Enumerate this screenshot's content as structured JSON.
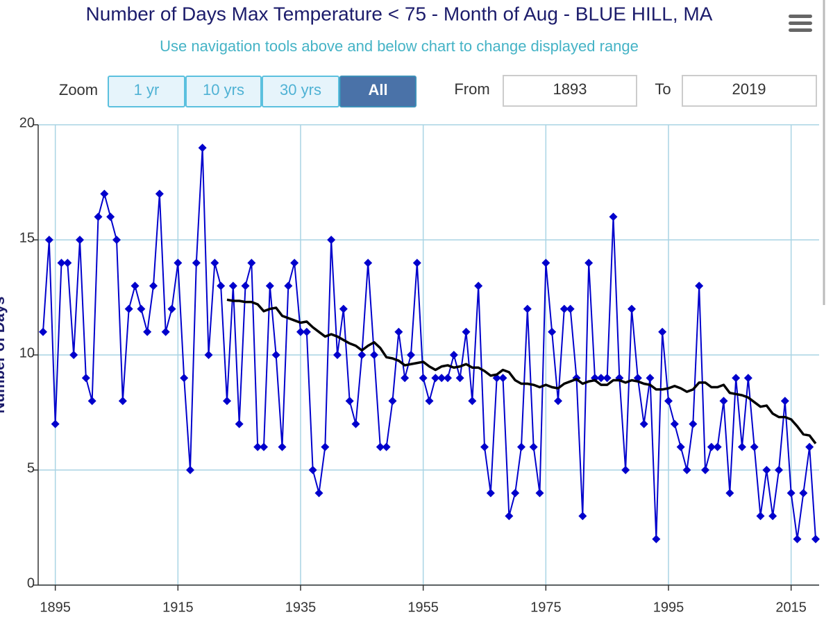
{
  "chart_data": {
    "type": "line",
    "title": "Number of Days Max Temperature < 75 - Month of Aug - BLUE HILL, MA",
    "subtitle": "Use navigation tools above and below chart to change displayed range",
    "y_label": "Number of Days",
    "x": [
      1893,
      1894,
      1895,
      1896,
      1897,
      1898,
      1899,
      1900,
      1901,
      1902,
      1903,
      1904,
      1905,
      1906,
      1907,
      1908,
      1909,
      1910,
      1911,
      1912,
      1913,
      1914,
      1915,
      1916,
      1917,
      1918,
      1919,
      1920,
      1921,
      1922,
      1923,
      1924,
      1925,
      1926,
      1927,
      1928,
      1929,
      1930,
      1931,
      1932,
      1933,
      1934,
      1935,
      1936,
      1937,
      1938,
      1939,
      1940,
      1941,
      1942,
      1943,
      1944,
      1945,
      1946,
      1947,
      1948,
      1949,
      1950,
      1951,
      1952,
      1953,
      1954,
      1955,
      1956,
      1957,
      1958,
      1959,
      1960,
      1961,
      1962,
      1963,
      1964,
      1965,
      1966,
      1967,
      1968,
      1969,
      1970,
      1971,
      1972,
      1973,
      1974,
      1975,
      1976,
      1977,
      1978,
      1979,
      1980,
      1981,
      1982,
      1983,
      1984,
      1985,
      1986,
      1987,
      1988,
      1989,
      1990,
      1991,
      1992,
      1993,
      1994,
      1995,
      1996,
      1997,
      1998,
      1999,
      2000,
      2001,
      2002,
      2003,
      2004,
      2005,
      2006,
      2007,
      2008,
      2009,
      2010,
      2011,
      2012,
      2013,
      2014,
      2015,
      2016,
      2017,
      2018,
      2019
    ],
    "series": [
      {
        "color": "#0000cc",
        "marker": "diamond",
        "values": [
          11,
          15,
          7,
          14,
          14,
          10,
          15,
          9,
          8,
          16,
          17,
          16,
          15,
          8,
          12,
          13,
          12,
          11,
          13,
          17,
          11,
          12,
          14,
          9,
          5,
          14,
          19,
          10,
          14,
          13,
          8,
          13,
          7,
          13,
          14,
          6,
          6,
          13,
          10,
          6,
          13,
          14,
          11,
          11,
          5,
          4,
          6,
          15,
          10,
          12,
          8,
          7,
          10,
          14,
          10,
          6,
          6,
          8,
          11,
          9,
          10,
          14,
          9,
          8,
          9,
          9,
          9,
          10,
          9,
          11,
          8,
          13,
          6,
          4,
          9,
          9,
          3,
          4,
          6,
          12,
          6,
          4,
          14,
          11,
          8,
          12,
          12,
          9,
          3,
          14,
          9,
          9,
          9,
          16,
          9,
          5,
          12,
          9,
          7,
          9,
          2,
          11,
          8,
          7,
          6,
          5,
          7,
          13,
          5,
          6,
          6,
          8,
          4,
          9,
          6,
          9,
          6,
          3,
          5,
          3,
          5,
          8,
          4,
          2,
          4,
          6,
          2
        ]
      },
      {
        "color": "#000000",
        "marker": "none",
        "values": [
          null,
          null,
          null,
          null,
          null,
          null,
          null,
          null,
          null,
          null,
          null,
          null,
          null,
          null,
          null,
          null,
          null,
          null,
          null,
          null,
          null,
          null,
          null,
          null,
          null,
          null,
          null,
          null,
          null,
          null,
          12.4,
          12.35,
          12.35,
          12.3,
          12.3,
          12.2,
          11.9,
          12.0,
          12.05,
          11.7,
          11.6,
          11.5,
          11.4,
          11.45,
          11.2,
          11.0,
          10.8,
          10.9,
          10.8,
          10.65,
          10.5,
          10.4,
          10.2,
          10.4,
          10.55,
          10.3,
          9.9,
          9.85,
          9.75,
          9.55,
          9.6,
          9.65,
          9.7,
          9.5,
          9.35,
          9.5,
          9.55,
          9.45,
          9.5,
          9.6,
          9.45,
          9.45,
          9.3,
          9.1,
          9.15,
          9.35,
          9.25,
          8.9,
          8.75,
          8.75,
          8.7,
          8.6,
          8.7,
          8.6,
          8.55,
          8.75,
          8.85,
          8.95,
          8.75,
          8.85,
          8.9,
          8.7,
          8.7,
          8.9,
          8.9,
          8.8,
          8.9,
          8.85,
          8.75,
          8.7,
          8.5,
          8.5,
          8.55,
          8.65,
          8.55,
          8.4,
          8.5,
          8.8,
          8.8,
          8.6,
          8.6,
          8.7,
          8.35,
          8.3,
          8.25,
          8.15,
          7.95,
          7.75,
          7.8,
          7.45,
          7.3,
          7.3,
          7.2,
          6.9,
          6.55,
          6.5,
          6.15
        ]
      }
    ],
    "xlim": [
      1893,
      2019
    ],
    "xticks": [
      1895,
      1915,
      1935,
      1955,
      1975,
      1995,
      2015
    ],
    "ylim": [
      0,
      20
    ],
    "yticks": [
      0,
      5,
      10,
      15,
      20
    ],
    "grid": true
  },
  "controls": {
    "zoom_label": "Zoom",
    "zoom_buttons": [
      "1 yr",
      "10 yrs",
      "30 yrs",
      "All"
    ],
    "selected_button": 3,
    "from_label": "From",
    "from_value": "1893",
    "to_label": "To",
    "to_value": "2019"
  }
}
